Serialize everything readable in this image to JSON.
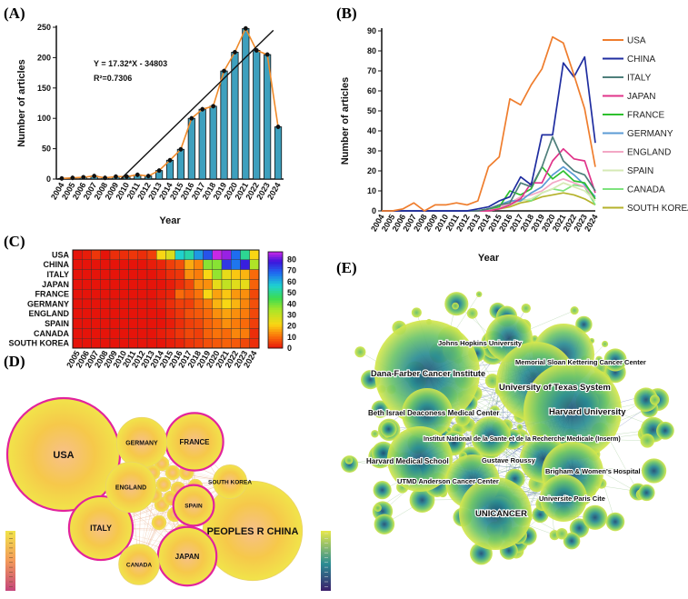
{
  "panels": {
    "a": "(A)",
    "b": "(B)",
    "c": "(C)",
    "d": "(D)",
    "e": "(E)"
  },
  "chart_data": [
    {
      "id": "A",
      "type": "bar",
      "title": "",
      "xlabel": "Year",
      "ylabel": "Number of articles",
      "categories": [
        "2004",
        "2005",
        "2006",
        "2007",
        "2008",
        "2009",
        "2010",
        "2011",
        "2012",
        "2013",
        "2014",
        "2015",
        "2016",
        "2017",
        "2018",
        "2019",
        "2020",
        "2021",
        "2022",
        "2023",
        "2024"
      ],
      "values": [
        1,
        2,
        3,
        5,
        2,
        4,
        4,
        7,
        5,
        14,
        31,
        49,
        100,
        115,
        120,
        178,
        209,
        248,
        212,
        205,
        86
      ],
      "ylim": [
        0,
        250
      ],
      "yticks": [
        0,
        50,
        100,
        150,
        200,
        250
      ],
      "trendline": {
        "slope": 17.32,
        "intercept": -34803,
        "equation": "Y = 17.32*X - 34803",
        "r2": "R²=0.7306"
      }
    },
    {
      "id": "B",
      "type": "line",
      "xlabel": "Year",
      "ylabel": "Number of articles",
      "x": [
        "2004",
        "2005",
        "2006",
        "2007",
        "2008",
        "2009",
        "2010",
        "2011",
        "2012",
        "2013",
        "2014",
        "2015",
        "2016",
        "2017",
        "2018",
        "2019",
        "2020",
        "2021",
        "2022",
        "2023",
        "2024"
      ],
      "ylim": [
        0,
        90
      ],
      "yticks": [
        0,
        10,
        20,
        30,
        40,
        50,
        60,
        70,
        80,
        90
      ],
      "series": [
        {
          "name": "USA",
          "color": "#ef7d2d",
          "values": [
            0,
            0,
            1,
            4,
            0,
            3,
            3,
            4,
            3,
            5,
            22,
            27,
            56,
            53,
            63,
            71,
            87,
            84,
            68,
            51,
            22
          ]
        },
        {
          "name": "CHINA",
          "color": "#1f2da0",
          "values": [
            0,
            0,
            0,
            0,
            0,
            0,
            0,
            0,
            0,
            1,
            2,
            5,
            7,
            17,
            13,
            38,
            38,
            74,
            67,
            77,
            34
          ]
        },
        {
          "name": "ITALY",
          "color": "#4e7f7b",
          "values": [
            0,
            0,
            0,
            0,
            0,
            0,
            0,
            0,
            0,
            0,
            1,
            3,
            4,
            14,
            12,
            22,
            37,
            25,
            20,
            18,
            10
          ]
        },
        {
          "name": "JAPAN",
          "color": "#e0348a",
          "values": [
            0,
            0,
            0,
            0,
            0,
            0,
            0,
            0,
            0,
            0,
            0,
            1,
            3,
            6,
            14,
            14,
            25,
            31,
            26,
            25,
            9
          ]
        },
        {
          "name": "FRANCE",
          "color": "#2ec02e",
          "values": [
            0,
            0,
            0,
            0,
            0,
            0,
            0,
            0,
            0,
            0,
            1,
            2,
            10,
            8,
            11,
            22,
            16,
            20,
            15,
            14,
            6
          ]
        },
        {
          "name": "GERMANY",
          "color": "#5b9bd5",
          "values": [
            0,
            0,
            0,
            0,
            0,
            0,
            0,
            0,
            0,
            0,
            1,
            3,
            5,
            5,
            9,
            12,
            18,
            22,
            18,
            13,
            7
          ]
        },
        {
          "name": "ENGLAND",
          "color": "#f3a7c5",
          "values": [
            0,
            0,
            0,
            0,
            0,
            0,
            0,
            0,
            0,
            0,
            0,
            2,
            4,
            7,
            8,
            10,
            14,
            16,
            14,
            12,
            6
          ]
        },
        {
          "name": "SPAIN",
          "color": "#d6e9b4",
          "values": [
            0,
            0,
            0,
            0,
            0,
            0,
            0,
            0,
            0,
            0,
            0,
            1,
            3,
            5,
            6,
            9,
            11,
            14,
            12,
            10,
            5
          ]
        },
        {
          "name": "CANADA",
          "color": "#7ee37e",
          "values": [
            0,
            0,
            0,
            0,
            0,
            0,
            0,
            0,
            0,
            0,
            1,
            2,
            4,
            6,
            5,
            9,
            11,
            10,
            13,
            12,
            3
          ]
        },
        {
          "name": "SOUTH KOREA",
          "color": "#b5b22b",
          "values": [
            0,
            0,
            0,
            0,
            0,
            0,
            0,
            0,
            0,
            0,
            0,
            1,
            2,
            4,
            5,
            7,
            8,
            9,
            8,
            6,
            3
          ]
        }
      ]
    },
    {
      "id": "C",
      "type": "heatmap",
      "rows": [
        "USA",
        "CHINA",
        "ITALY",
        "JAPAN",
        "FRANCE",
        "GERMANY",
        "ENGLAND",
        "SPAIN",
        "CANADA",
        "SOUTH KOREA"
      ],
      "columns": [
        "2005",
        "2006",
        "2007",
        "2008",
        "2009",
        "2010",
        "2011",
        "2012",
        "2013",
        "2014",
        "2015",
        "2016",
        "2017",
        "2018",
        "2019",
        "2020",
        "2021",
        "2022",
        "2023",
        "2024"
      ],
      "values": [
        [
          0,
          1,
          4,
          0,
          3,
          3,
          4,
          3,
          5,
          22,
          27,
          56,
          53,
          63,
          71,
          87,
          84,
          68,
          51,
          22
        ],
        [
          0,
          0,
          0,
          0,
          0,
          0,
          0,
          0,
          1,
          2,
          5,
          7,
          17,
          13,
          38,
          38,
          74,
          67,
          77,
          34
        ],
        [
          0,
          0,
          0,
          0,
          0,
          0,
          0,
          0,
          0,
          1,
          3,
          4,
          14,
          12,
          22,
          37,
          25,
          20,
          18,
          10
        ],
        [
          0,
          0,
          0,
          0,
          0,
          0,
          0,
          0,
          0,
          0,
          1,
          3,
          6,
          14,
          14,
          25,
          31,
          26,
          25,
          9
        ],
        [
          0,
          0,
          0,
          0,
          0,
          0,
          0,
          0,
          0,
          1,
          2,
          10,
          8,
          11,
          22,
          16,
          20,
          15,
          14,
          6
        ],
        [
          0,
          0,
          0,
          0,
          0,
          0,
          0,
          0,
          0,
          1,
          3,
          5,
          5,
          9,
          12,
          18,
          22,
          18,
          13,
          7
        ],
        [
          0,
          0,
          0,
          0,
          0,
          0,
          0,
          0,
          0,
          0,
          2,
          4,
          7,
          8,
          10,
          14,
          16,
          14,
          12,
          6
        ],
        [
          0,
          0,
          0,
          0,
          0,
          0,
          0,
          0,
          0,
          0,
          1,
          3,
          5,
          6,
          9,
          11,
          14,
          12,
          10,
          5
        ],
        [
          0,
          0,
          0,
          0,
          0,
          0,
          0,
          0,
          0,
          1,
          2,
          4,
          6,
          5,
          9,
          11,
          10,
          13,
          12,
          3
        ],
        [
          0,
          0,
          0,
          0,
          0,
          0,
          0,
          0,
          0,
          0,
          1,
          2,
          4,
          5,
          7,
          8,
          9,
          8,
          6,
          3
        ]
      ],
      "colorbar_ticks": [
        0,
        10,
        20,
        30,
        40,
        50,
        60,
        70,
        80
      ],
      "colorbar_range": [
        0,
        87
      ]
    }
  ],
  "networks": {
    "d": {
      "nodes": [
        {
          "label": "USA",
          "weight": 1.0,
          "ring": true
        },
        {
          "label": "PEOPLES R CHINA",
          "weight": 0.78,
          "ring": false
        },
        {
          "label": "ITALY",
          "weight": 0.32,
          "ring": true
        },
        {
          "label": "FRANCE",
          "weight": 0.26,
          "ring": true
        },
        {
          "label": "JAPAN",
          "weight": 0.27,
          "ring": true
        },
        {
          "label": "GERMANY",
          "weight": 0.2,
          "ring": false
        },
        {
          "label": "ENGLAND",
          "weight": 0.2,
          "ring": false
        },
        {
          "label": "SPAIN",
          "weight": 0.13,
          "ring": true
        },
        {
          "label": "CANADA",
          "weight": 0.13,
          "ring": false
        },
        {
          "label": "SOUTH KOREA",
          "weight": 0.09,
          "ring": false
        }
      ]
    },
    "e": {
      "nodes": [
        {
          "label": "Johns Hopkins University"
        },
        {
          "label": "Dana-Farber Cancer Institute"
        },
        {
          "label": "Memorial Sloan Kettering Cancer Center"
        },
        {
          "label": "University of Texas System"
        },
        {
          "label": "Beth Israel Deaconess Medical Center"
        },
        {
          "label": "Harvard University"
        },
        {
          "label": "Institut National de la Sante et de la Recherche Medicale (Inserm)"
        },
        {
          "label": "Harvard Medical School"
        },
        {
          "label": "Gustave Roussy"
        },
        {
          "label": "Brigham & Women's Hospital"
        },
        {
          "label": "UTMD Anderson Cancer Center"
        },
        {
          "label": "Universite Paris Cite"
        },
        {
          "label": "UNICANCER"
        }
      ]
    }
  }
}
